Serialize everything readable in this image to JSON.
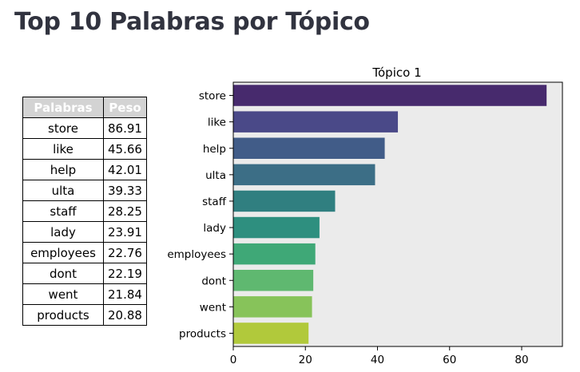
{
  "page": {
    "title": "Top 10 Palabras por Tópico"
  },
  "table": {
    "headers": [
      "Palabras",
      "Peso"
    ],
    "rows": [
      [
        "store",
        "86.91"
      ],
      [
        "like",
        "45.66"
      ],
      [
        "help",
        "42.01"
      ],
      [
        "ulta",
        "39.33"
      ],
      [
        "staff",
        "28.25"
      ],
      [
        "lady",
        "23.91"
      ],
      [
        "employees",
        "22.76"
      ],
      [
        "dont",
        "22.19"
      ],
      [
        "went",
        "21.84"
      ],
      [
        "products",
        "20.88"
      ]
    ]
  },
  "chart_data": {
    "type": "bar",
    "orientation": "horizontal",
    "title": "Tópico 1",
    "xlabel": "",
    "ylabel": "",
    "categories": [
      "store",
      "like",
      "help",
      "ulta",
      "staff",
      "lady",
      "employees",
      "dont",
      "went",
      "products"
    ],
    "values": [
      86.91,
      45.66,
      42.01,
      39.33,
      28.25,
      23.91,
      22.76,
      22.19,
      21.84,
      20.88
    ],
    "xlim": [
      0,
      91.3
    ],
    "xticks": [
      0,
      20,
      40,
      60,
      80
    ],
    "grid": false,
    "background": "#ebebeb",
    "colors": [
      "#482475",
      "#414487",
      "#355f8d",
      "#2a788e",
      "#21918c",
      "#22a884",
      "#44bf70",
      "#7ad151",
      "#bddf26",
      "#fde725"
    ],
    "bar_colors": [
      "#472a6d",
      "#4a4988",
      "#415c88",
      "#3c6e86",
      "#307f80",
      "#2e8f7f",
      "#3fa877",
      "#5fb870",
      "#87c35a",
      "#b1c93b"
    ]
  }
}
